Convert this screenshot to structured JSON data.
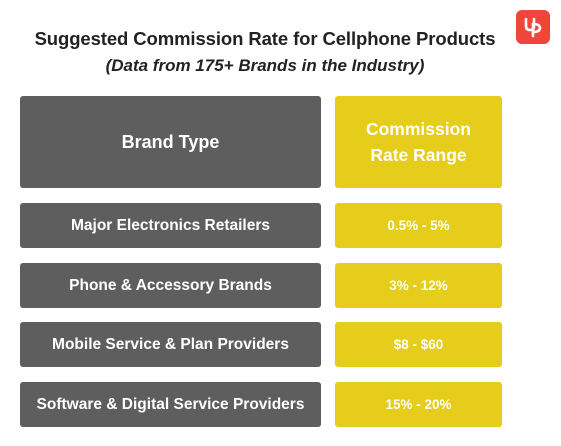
{
  "header": {
    "title": "Suggested Commission Rate for Cellphone Products",
    "subtitle": "(Data from 175+ Brands in the Industry)"
  },
  "logo": {
    "icon": "up-logo-icon",
    "color": "#f0453a"
  },
  "table": {
    "columns": [
      "Brand Type",
      "Commission Rate Range"
    ],
    "rows": [
      {
        "brand_type": "Major Electronics Retailers",
        "rate_range": "0.5% - 5%"
      },
      {
        "brand_type": "Phone & Accessory Brands",
        "rate_range": "3% - 12%"
      },
      {
        "brand_type": "Mobile Service & Plan Providers",
        "rate_range": "$8 - $60"
      },
      {
        "brand_type": "Software & Digital Service Providers",
        "rate_range": "15% - 20%"
      }
    ],
    "colors": {
      "brand_column": "#5e5e5e",
      "rate_column": "#e6cc1b",
      "text": "#ffffff"
    }
  }
}
